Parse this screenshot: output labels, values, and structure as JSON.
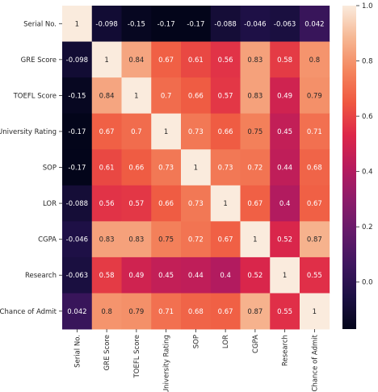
{
  "chart_data": {
    "type": "heatmap",
    "title": "",
    "row_labels": [
      "Serial No.",
      "GRE Score",
      "TOEFL Score",
      "University Rating",
      "SOP",
      "LOR",
      "CGPA",
      "Research",
      "Chance of Admit"
    ],
    "col_labels": [
      "Serial No.",
      "GRE Score",
      "TOEFL Score",
      "University Rating",
      "SOP",
      "LOR",
      "CGPA",
      "Research",
      "Chance of Admit"
    ],
    "values": [
      [
        1,
        -0.098,
        -0.15,
        -0.17,
        -0.17,
        -0.088,
        -0.046,
        -0.063,
        0.042
      ],
      [
        -0.098,
        1,
        0.84,
        0.67,
        0.61,
        0.56,
        0.83,
        0.58,
        0.8
      ],
      [
        -0.15,
        0.84,
        1,
        0.7,
        0.66,
        0.57,
        0.83,
        0.49,
        0.79
      ],
      [
        -0.17,
        0.67,
        0.7,
        1,
        0.73,
        0.66,
        0.75,
        0.45,
        0.71
      ],
      [
        -0.17,
        0.61,
        0.66,
        0.73,
        1,
        0.73,
        0.72,
        0.44,
        0.68
      ],
      [
        -0.088,
        0.56,
        0.57,
        0.66,
        0.73,
        1,
        0.67,
        0.4,
        0.67
      ],
      [
        -0.046,
        0.83,
        0.83,
        0.75,
        0.72,
        0.67,
        1,
        0.52,
        0.87
      ],
      [
        -0.063,
        0.58,
        0.49,
        0.45,
        0.44,
        0.4,
        0.52,
        1,
        0.55
      ],
      [
        0.042,
        0.8,
        0.79,
        0.71,
        0.68,
        0.67,
        0.87,
        0.55,
        1
      ]
    ],
    "value_labels": [
      [
        "1",
        "-0.098",
        "-0.15",
        "-0.17",
        "-0.17",
        "-0.088",
        "-0.046",
        "-0.063",
        "0.042"
      ],
      [
        "-0.098",
        "1",
        "0.84",
        "0.67",
        "0.61",
        "0.56",
        "0.83",
        "0.58",
        "0.8"
      ],
      [
        "-0.15",
        "0.84",
        "1",
        "0.7",
        "0.66",
        "0.57",
        "0.83",
        "0.49",
        "0.79"
      ],
      [
        "-0.17",
        "0.67",
        "0.7",
        "1",
        "0.73",
        "0.66",
        "0.75",
        "0.45",
        "0.71"
      ],
      [
        "-0.17",
        "0.61",
        "0.66",
        "0.73",
        "1",
        "0.73",
        "0.72",
        "0.44",
        "0.68"
      ],
      [
        "-0.088",
        "0.56",
        "0.57",
        "0.66",
        "0.73",
        "1",
        "0.67",
        "0.4",
        "0.67"
      ],
      [
        "-0.046",
        "0.83",
        "0.83",
        "0.75",
        "0.72",
        "0.67",
        "1",
        "0.52",
        "0.87"
      ],
      [
        "-0.063",
        "0.58",
        "0.49",
        "0.45",
        "0.44",
        "0.4",
        "0.52",
        "1",
        "0.55"
      ],
      [
        "0.042",
        "0.8",
        "0.79",
        "0.71",
        "0.68",
        "0.67",
        "0.87",
        "0.55",
        "1"
      ]
    ],
    "colorbar": {
      "range": [
        -0.17,
        1.0
      ],
      "ticks": [
        0.0,
        0.2,
        0.4,
        0.6,
        0.8,
        1.0
      ],
      "tick_labels": [
        "0.0",
        "0.2",
        "0.4",
        "0.6",
        "0.8",
        "1.0"
      ],
      "colormap": "rocket"
    }
  }
}
